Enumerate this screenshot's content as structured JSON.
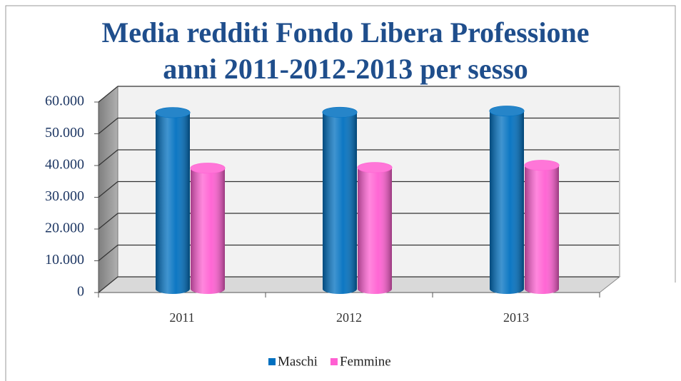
{
  "chart_data": {
    "type": "bar3d",
    "title": "Media redditi Fondo Libera Professione",
    "subtitle": "anni 2011-2012-2013 per sesso",
    "categories": [
      "2011",
      "2012",
      "2013"
    ],
    "series": [
      {
        "name": "Maschi",
        "color": "#0070c0",
        "values": [
          54200,
          54300,
          54700
        ]
      },
      {
        "name": "Femmine",
        "color": "#ff5fd2",
        "values": [
          36700,
          36900,
          37600
        ]
      }
    ],
    "ylim": [
      0,
      60000
    ],
    "yticks": [
      0,
      {
        "value": 10000,
        "label": "10.000"
      },
      {
        "value": 20000,
        "label": "20.000"
      },
      {
        "value": 30000,
        "label": "30.000"
      },
      {
        "value": 40000,
        "label": "40.000"
      },
      {
        "value": 50000,
        "label": "50.000"
      },
      {
        "value": 60000,
        "label": "60.000"
      }
    ],
    "grid": true,
    "legend": "bottom"
  }
}
